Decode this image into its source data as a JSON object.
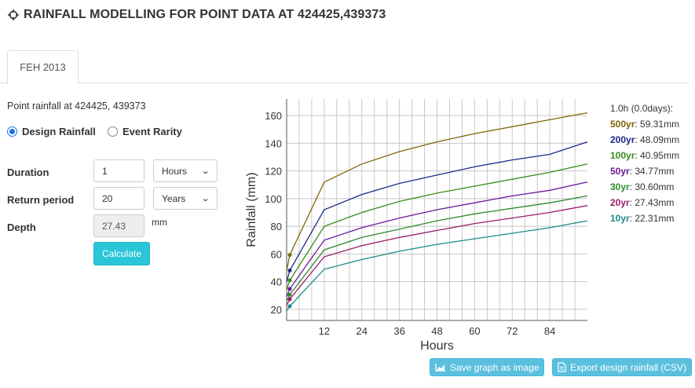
{
  "header": {
    "title": "RAINFALL MODELLING FOR POINT DATA AT 424425,439373"
  },
  "tabs": [
    {
      "label": "FEH 2013"
    }
  ],
  "point_label": "Point rainfall at 424425, 439373",
  "radios": {
    "design": "Design Rainfall",
    "event": "Event Rarity"
  },
  "form": {
    "duration": {
      "label": "Duration",
      "value": "1",
      "unit": "Hours"
    },
    "return_period": {
      "label": "Return period",
      "value": "20",
      "unit": "Years"
    },
    "depth": {
      "label": "Depth",
      "value": "27.43",
      "unit": "mm"
    },
    "calculate": "Calculate"
  },
  "buttons": {
    "save_graph": "Save graph as image",
    "export_csv": "Export design rainfall (CSV)"
  },
  "chart_data": {
    "type": "line",
    "xlabel": "Hours",
    "ylabel": "Rainfall (mm)",
    "xlim": [
      0,
      96
    ],
    "ylim": [
      12,
      172
    ],
    "xticks": [
      12,
      24,
      36,
      48,
      60,
      72,
      84
    ],
    "yticks": [
      20,
      40,
      60,
      80,
      100,
      120,
      140,
      160
    ],
    "grid": true,
    "legend_position": "right",
    "legend_title": "1.0h (0.0days):",
    "series": [
      {
        "name": "500yr",
        "legend_value": "59.31mm",
        "color": "#7d6608",
        "x": [
          0,
          1,
          12,
          24,
          36,
          48,
          60,
          72,
          84,
          96
        ],
        "y": [
          48,
          59.3,
          112,
          125,
          134,
          141,
          147,
          152,
          157,
          162
        ]
      },
      {
        "name": "200yr",
        "legend_value": "48.09mm",
        "color": "#1a2a8a",
        "x": [
          0,
          1,
          12,
          24,
          36,
          48,
          60,
          72,
          84,
          96
        ],
        "y": [
          40,
          48.1,
          92,
          103,
          111,
          117,
          123,
          128,
          132,
          141
        ]
      },
      {
        "name": "100yr",
        "legend_value": "40.95mm",
        "color": "#3b8a1a",
        "x": [
          0,
          1,
          12,
          24,
          36,
          48,
          60,
          72,
          84,
          96
        ],
        "y": [
          34,
          41,
          80,
          90,
          98,
          104,
          109,
          114,
          119,
          125
        ]
      },
      {
        "name": "50yr",
        "legend_value": "34.77mm",
        "color": "#6a1a9a",
        "x": [
          0,
          1,
          12,
          24,
          36,
          48,
          60,
          72,
          84,
          96
        ],
        "y": [
          29,
          34.8,
          70,
          79,
          86,
          92,
          97,
          102,
          106,
          112
        ]
      },
      {
        "name": "30yr",
        "legend_value": "30.60mm",
        "color": "#2e8b2e",
        "x": [
          0,
          1,
          12,
          24,
          36,
          48,
          60,
          72,
          84,
          96
        ],
        "y": [
          26,
          30.6,
          63,
          72,
          78,
          84,
          89,
          93,
          97,
          102
        ]
      },
      {
        "name": "20yr",
        "legend_value": "27.43mm",
        "color": "#9a1a6a",
        "x": [
          0,
          1,
          12,
          24,
          36,
          48,
          60,
          72,
          84,
          96
        ],
        "y": [
          23,
          27.4,
          58,
          66,
          72,
          77,
          82,
          86,
          90,
          95
        ]
      },
      {
        "name": "10yr",
        "legend_value": "22.31mm",
        "color": "#1a8a8a",
        "x": [
          0,
          1,
          12,
          24,
          36,
          48,
          60,
          72,
          84,
          96
        ],
        "y": [
          19,
          22.3,
          49,
          56,
          62,
          67,
          71,
          75,
          79,
          84
        ]
      }
    ]
  },
  "colors": {
    "accent": "#2bc5d8",
    "button_info": "#5bc0de",
    "radio": "#1a73e8"
  },
  "icons": {
    "header": "crosshair-icon",
    "save": "area-chart-icon",
    "export": "document-icon"
  }
}
